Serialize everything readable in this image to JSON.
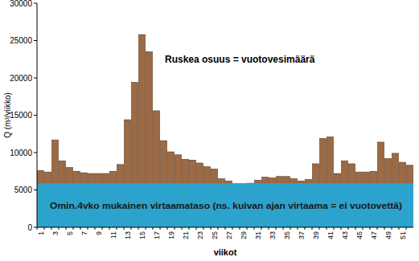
{
  "chart_data": {
    "type": "bar",
    "categories": [
      "1",
      null,
      "3",
      null,
      "5",
      null,
      "7",
      null,
      "9",
      null,
      "11",
      null,
      "13",
      null,
      "15",
      null,
      "17",
      null,
      "19",
      null,
      "21",
      null,
      "23",
      null,
      "25",
      null,
      "27",
      null,
      "29",
      null,
      "31",
      null,
      "33",
      null,
      "35",
      null,
      "37",
      null,
      "39",
      null,
      "41",
      null,
      "43",
      null,
      "45",
      null,
      "47",
      null,
      "49",
      null,
      "51",
      null
    ],
    "values": [
      7600,
      7400,
      11700,
      8900,
      8000,
      7500,
      7300,
      7200,
      7200,
      7200,
      7500,
      8400,
      14400,
      19400,
      25800,
      23500,
      15600,
      11600,
      10100,
      9700,
      9100,
      9000,
      8600,
      8100,
      7800,
      6500,
      6200,
      5800,
      5800,
      5900,
      6300,
      6700,
      6600,
      6800,
      6800,
      6500,
      6200,
      6400,
      8500,
      11900,
      12100,
      7200,
      8900,
      8500,
      7400,
      7400,
      7500,
      11400,
      9200,
      9900,
      8700,
      8300
    ],
    "color": "#9c6a44",
    "x_label": "viikot",
    "y_label": "Q (m³/viikko)",
    "ylim": [
      0,
      30000
    ],
    "yticks": [
      0,
      5000,
      10000,
      15000,
      20000,
      25000,
      30000
    ],
    "grid": false,
    "baseline": {
      "value": 5900,
      "label": "Omin.4vko mukainen virtaamataso (ns. kuivan ajan virtaama = ei vuotovettä)",
      "color": "#2ba3cd"
    },
    "annotations": [
      {
        "text": "Ruskea osuus = vuotovesimäärä"
      }
    ]
  }
}
